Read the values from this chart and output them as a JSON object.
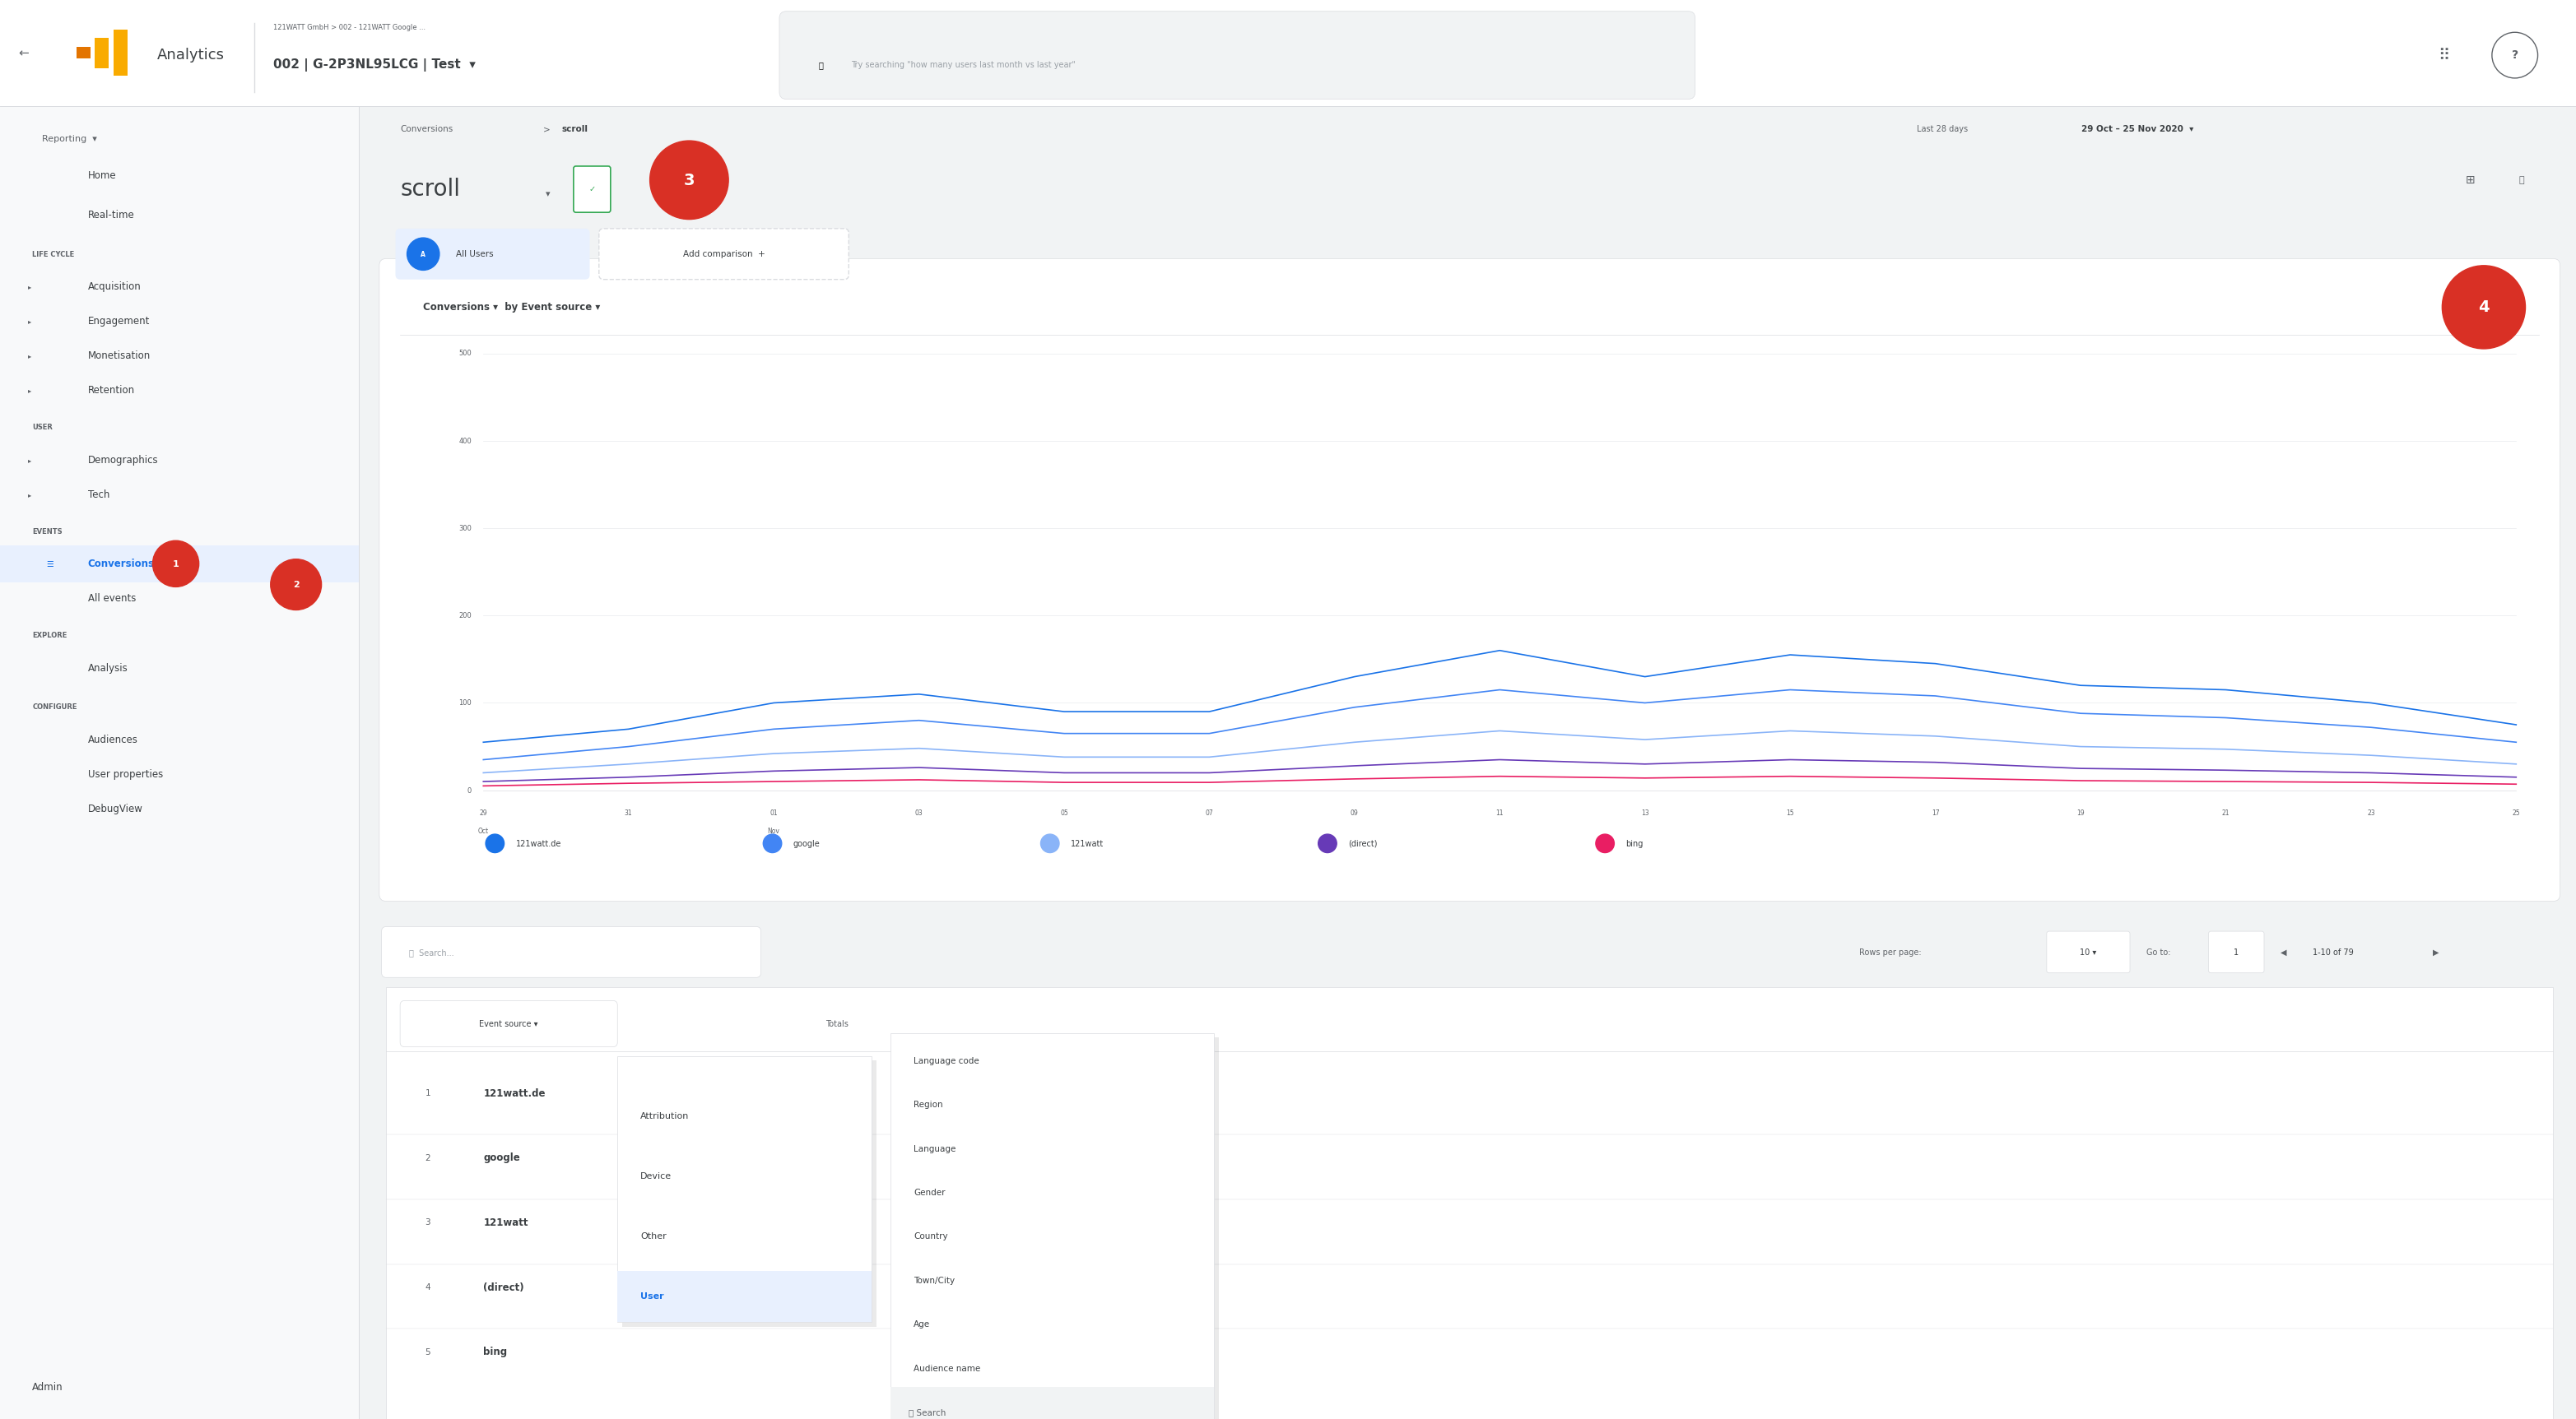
{
  "bg_color": "#f1f3f4",
  "sidebar_color": "#f8f9fa",
  "white": "#ffffff",
  "text_dark": "#3c4043",
  "text_medium": "#5f6368",
  "text_light": "#9aa0a6",
  "blue_primary": "#1a73e8",
  "red_circle": "#d93025",
  "green": "#34a853",
  "border_color": "#dadce0",
  "active_bg": "#e8f0fe",
  "legend_items": [
    "121watt.de",
    "google",
    "121watt",
    "(direct)",
    "bing"
  ],
  "legend_colors": [
    "#1a73e8",
    "#4285f4",
    "#8ab4f8",
    "#673ab7",
    "#e91e63"
  ],
  "series_121watt_de": [
    55,
    70,
    100,
    110,
    90,
    90,
    130,
    160,
    130,
    155,
    145,
    120,
    115,
    100,
    75
  ],
  "series_google": [
    35,
    50,
    70,
    80,
    65,
    65,
    95,
    115,
    100,
    115,
    108,
    88,
    83,
    72,
    55
  ],
  "series_121watt": [
    20,
    30,
    42,
    48,
    38,
    38,
    55,
    68,
    58,
    68,
    62,
    50,
    47,
    40,
    30
  ],
  "series_direct": [
    10,
    15,
    22,
    26,
    20,
    20,
    28,
    35,
    30,
    35,
    32,
    25,
    23,
    20,
    15
  ],
  "series_bing": [
    5,
    8,
    10,
    12,
    9,
    9,
    13,
    16,
    14,
    16,
    14,
    11,
    10,
    9,
    7
  ],
  "x_labels": [
    "29\nOct",
    "31",
    "01\nNov",
    "03",
    "05",
    "07",
    "09",
    "11",
    "13",
    "15",
    "17",
    "19",
    "21",
    "23",
    "25"
  ],
  "y_ticks": [
    0,
    100,
    200,
    300,
    400,
    500
  ],
  "y_max": 500,
  "dropdown_user_items": [
    "User",
    "Other",
    "Device",
    "Attribution"
  ],
  "dropdown_search_items": [
    "Search",
    "Audience name",
    "Age",
    "Town/City",
    "Country",
    "Gender",
    "Language",
    "Region",
    "Language code"
  ],
  "table_rows": [
    "121watt.de",
    "google",
    "121watt",
    "(direct)",
    "bing"
  ]
}
